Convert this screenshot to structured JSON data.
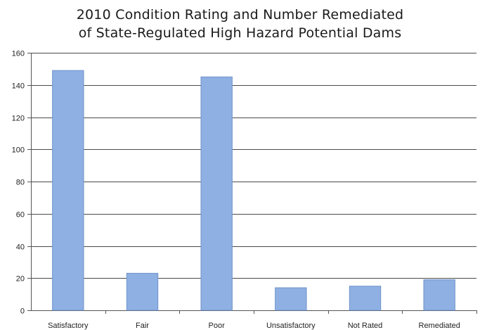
{
  "chart_data": {
    "type": "bar",
    "title_lines": [
      "2010 Condition Rating and Number Remediated",
      "of State-Regulated High Hazard Potential Dams"
    ],
    "categories": [
      "Satisfactory",
      "Fair",
      "Poor",
      "Unsatisfactory",
      "Not Rated",
      "Remediated"
    ],
    "values": [
      149,
      23,
      145,
      14,
      15,
      19
    ],
    "ylim": [
      0,
      160
    ],
    "yticks": [
      0,
      20,
      40,
      60,
      80,
      100,
      120,
      140,
      160
    ],
    "xlabel": "",
    "ylabel": "",
    "grid": true,
    "legend": "none",
    "bar_color": "#8fb0e2",
    "bar_edge_color": "#6f93cc",
    "grid_color": "#4a4a4a",
    "axis_color": "#555555"
  }
}
